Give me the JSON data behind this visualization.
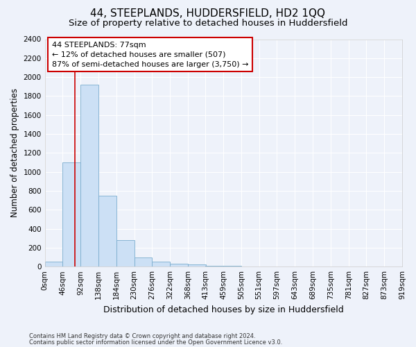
{
  "title": "44, STEEPLANDS, HUDDERSFIELD, HD2 1QQ",
  "subtitle": "Size of property relative to detached houses in Huddersfield",
  "xlabel": "Distribution of detached houses by size in Huddersfield",
  "ylabel": "Number of detached properties",
  "footnote1": "Contains HM Land Registry data © Crown copyright and database right 2024.",
  "footnote2": "Contains public sector information licensed under the Open Government Licence v3.0.",
  "annotation_title": "44 STEEPLANDS: 77sqm",
  "annotation_line1": "← 12% of detached houses are smaller (507)",
  "annotation_line2": "87% of semi-detached houses are larger (3,750) →",
  "bar_color": "#cce0f5",
  "bar_edge_color": "#7aadce",
  "vline_color": "#cc0000",
  "vline_x": 77,
  "bin_edges": [
    0,
    46,
    92,
    138,
    184,
    230,
    276,
    322,
    368,
    413,
    459,
    505,
    551,
    597,
    643,
    689,
    735,
    781,
    827,
    873,
    919
  ],
  "bin_labels": [
    "0sqm",
    "46sqm",
    "92sqm",
    "138sqm",
    "184sqm",
    "230sqm",
    "276sqm",
    "322sqm",
    "368sqm",
    "413sqm",
    "459sqm",
    "505sqm",
    "551sqm",
    "597sqm",
    "643sqm",
    "689sqm",
    "735sqm",
    "781sqm",
    "827sqm",
    "873sqm",
    "919sqm"
  ],
  "bar_heights": [
    50,
    1100,
    1920,
    750,
    280,
    100,
    50,
    30,
    20,
    10,
    5,
    0,
    0,
    0,
    0,
    0,
    0,
    0,
    0,
    0
  ],
  "ylim": [
    0,
    2400
  ],
  "yticks": [
    0,
    200,
    400,
    600,
    800,
    1000,
    1200,
    1400,
    1600,
    1800,
    2000,
    2200,
    2400
  ],
  "xlim_min": 0,
  "xlim_max": 919,
  "background_color": "#eef2fa",
  "plot_bg_color": "#eef2fa",
  "grid_color": "#ffffff",
  "title_fontsize": 11,
  "subtitle_fontsize": 9.5,
  "xlabel_fontsize": 9,
  "ylabel_fontsize": 8.5,
  "annot_fontsize": 8,
  "tick_fontsize": 7.5,
  "footnote_fontsize": 6
}
